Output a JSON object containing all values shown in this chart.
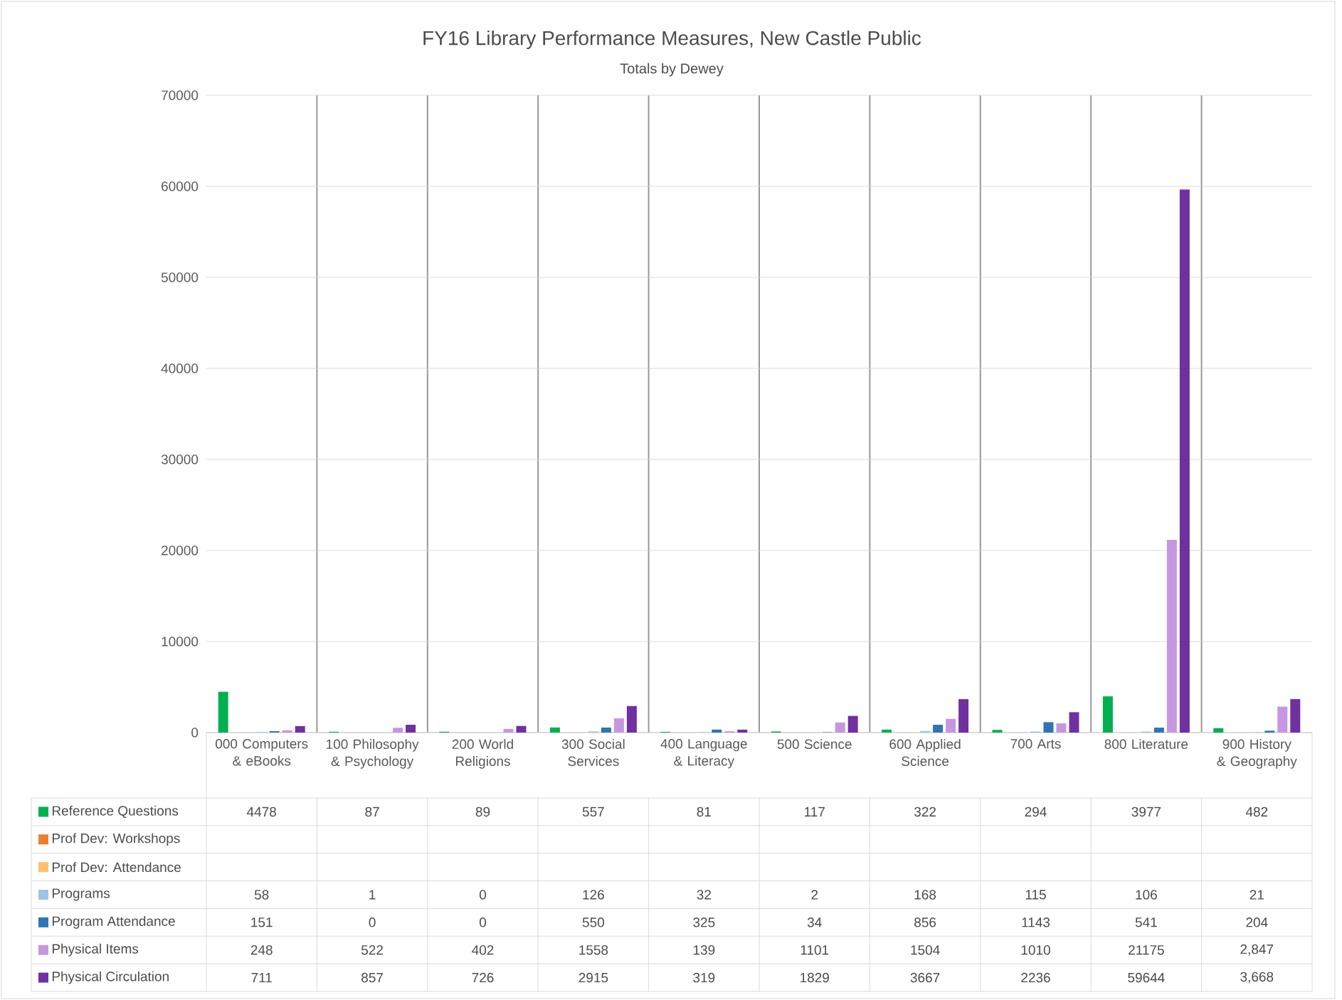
{
  "chart_data": {
    "type": "bar",
    "title": "FY16 Library Performance Measures, New Castle Public",
    "subtitle": "Totals by Dewey",
    "categories": [
      "000 Computers & eBooks",
      "100 Philosophy & Psychology",
      "200 World Religions",
      "300 Social Services",
      "400 Language & Literacy",
      "500 Science",
      "600 Applied Science",
      "700 Arts",
      "800 Literature",
      "900 History & Geography"
    ],
    "series": [
      {
        "name": "Reference Questions",
        "color": "#00b050",
        "values": [
          4478,
          87,
          89,
          557,
          81,
          117,
          322,
          294,
          3977,
          482
        ],
        "value_labels": [
          "4478",
          "87",
          "89",
          "557",
          "81",
          "117",
          "322",
          "294",
          "3977",
          "482"
        ]
      },
      {
        "name": "Prof Dev: Workshops",
        "color": "#ed7d31",
        "values": [
          null,
          null,
          null,
          null,
          null,
          null,
          null,
          null,
          null,
          null
        ],
        "value_labels": [
          null,
          null,
          null,
          null,
          null,
          null,
          null,
          null,
          null,
          null
        ]
      },
      {
        "name": "Prof Dev: Attendance",
        "color": "#ffc06e",
        "values": [
          null,
          null,
          null,
          null,
          null,
          null,
          null,
          null,
          null,
          null
        ],
        "value_labels": [
          null,
          null,
          null,
          null,
          null,
          null,
          null,
          null,
          null,
          null
        ]
      },
      {
        "name": "Programs",
        "color": "#9dc3e6",
        "values": [
          58,
          1,
          0,
          126,
          32,
          2,
          168,
          115,
          106,
          21
        ],
        "value_labels": [
          "58",
          "1",
          "0",
          "126",
          "32",
          "2",
          "168",
          "115",
          "106",
          "21"
        ]
      },
      {
        "name": "Program Attendance",
        "color": "#2e75b6",
        "values": [
          151,
          0,
          0,
          550,
          325,
          34,
          856,
          1143,
          541,
          204
        ],
        "value_labels": [
          "151",
          "0",
          "0",
          "550",
          "325",
          "34",
          "856",
          "1143",
          "541",
          "204"
        ]
      },
      {
        "name": "Physical Items",
        "color": "#c497e0",
        "values": [
          248,
          522,
          402,
          1558,
          139,
          1101,
          1504,
          1010,
          21175,
          2847
        ],
        "value_labels": [
          "248",
          "522",
          "402",
          "1558",
          "139",
          "1101",
          "1504",
          "1010",
          "21175",
          "2,847"
        ]
      },
      {
        "name": "Physical Circulation",
        "color": "#7030a0",
        "values": [
          711,
          857,
          726,
          2915,
          319,
          1829,
          3667,
          2236,
          59644,
          3668
        ],
        "value_labels": [
          "711",
          "857",
          "726",
          "2915",
          "319",
          "1829",
          "3667",
          "2236",
          "59644",
          "3,668"
        ]
      }
    ],
    "ylim": [
      0,
      70000
    ],
    "yticks": [
      0,
      10000,
      20000,
      30000,
      40000,
      50000,
      60000,
      70000
    ],
    "grid": true,
    "legend": "bottom left"
  }
}
